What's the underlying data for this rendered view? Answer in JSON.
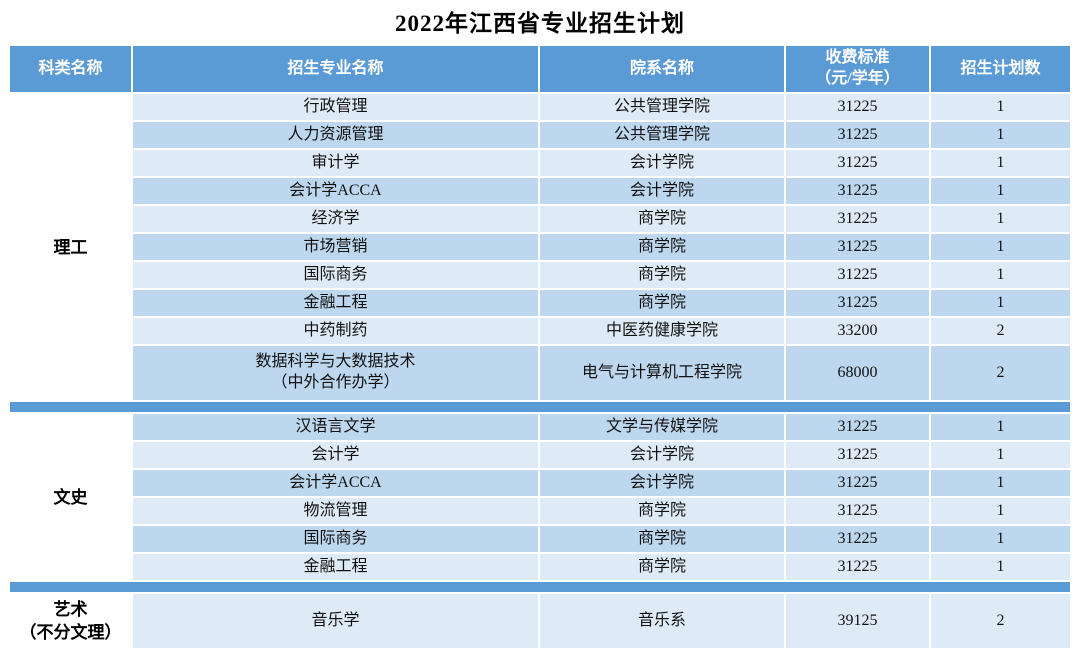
{
  "title": "2022年江西省专业招生计划",
  "colors": {
    "header_blue": "#5B9BD5",
    "row_light": "#DEEBF7",
    "row_dark": "#BDD7EE",
    "title_text": "#000000",
    "header_text": "#ffffff"
  },
  "table": {
    "headers": {
      "category": "科类名称",
      "major": "招生专业名称",
      "department": "院系名称",
      "fee_line1": "收费标准",
      "fee_line2": "（元/学年）",
      "plan": "招生计划数"
    },
    "groups": [
      {
        "category": "理工",
        "rows": [
          {
            "major": "行政管理",
            "department": "公共管理学院",
            "fee": "31225",
            "plan": "1"
          },
          {
            "major": "人力资源管理",
            "department": "公共管理学院",
            "fee": "31225",
            "plan": "1"
          },
          {
            "major": "审计学",
            "department": "会计学院",
            "fee": "31225",
            "plan": "1"
          },
          {
            "major": "会计学ACCA",
            "department": "会计学院",
            "fee": "31225",
            "plan": "1"
          },
          {
            "major": "经济学",
            "department": "商学院",
            "fee": "31225",
            "plan": "1"
          },
          {
            "major": "市场营销",
            "department": "商学院",
            "fee": "31225",
            "plan": "1"
          },
          {
            "major": "国际商务",
            "department": "商学院",
            "fee": "31225",
            "plan": "1"
          },
          {
            "major": "金融工程",
            "department": "商学院",
            "fee": "31225",
            "plan": "1"
          },
          {
            "major": "中药制药",
            "department": "中医药健康学院",
            "fee": "33200",
            "plan": "2"
          },
          {
            "major": "数据科学与大数据技术\n（中外合作办学）",
            "department": "电气与计算机工程学院",
            "fee": "68000",
            "plan": "2"
          }
        ]
      },
      {
        "category": "文史",
        "rows": [
          {
            "major": "汉语言文学",
            "department": "文学与传媒学院",
            "fee": "31225",
            "plan": "1"
          },
          {
            "major": "会计学",
            "department": "会计学院",
            "fee": "31225",
            "plan": "1"
          },
          {
            "major": "会计学ACCA",
            "department": "会计学院",
            "fee": "31225",
            "plan": "1"
          },
          {
            "major": "物流管理",
            "department": "商学院",
            "fee": "31225",
            "plan": "1"
          },
          {
            "major": "国际商务",
            "department": "商学院",
            "fee": "31225",
            "plan": "1"
          },
          {
            "major": "金融工程",
            "department": "商学院",
            "fee": "31225",
            "plan": "1"
          }
        ]
      },
      {
        "category": "艺术\n（不分文理）",
        "rows": [
          {
            "major": "音乐学",
            "department": "音乐系",
            "fee": "39125",
            "plan": "2"
          }
        ]
      }
    ]
  }
}
